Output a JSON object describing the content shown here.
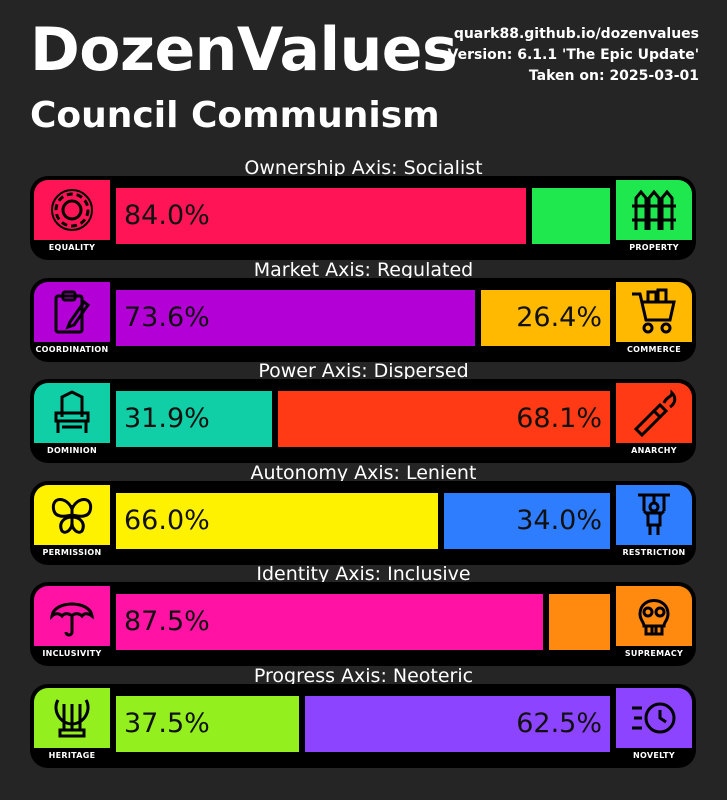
{
  "header": {
    "title": "DozenValues",
    "result": "Council Communism",
    "site": "quark88.github.io/dozenvalues",
    "version": "Version: 6.1.1 'The Epic Update'",
    "taken": "Taken on: 2025-03-01"
  },
  "axes": [
    {
      "title": "Ownership Axis: Socialist",
      "left": {
        "label": "EQUALITY",
        "icon": "gear-icon",
        "color": "#ff1556",
        "pct": 84.0,
        "text": "84.0%"
      },
      "right": {
        "label": "PROPERTY",
        "icon": "fence-icon",
        "color": "#1ee84e",
        "pct": 16.0,
        "text": ""
      }
    },
    {
      "title": "Market Axis: Regulated",
      "left": {
        "label": "COORDINATION",
        "icon": "clipboard-icon",
        "color": "#b300d6",
        "pct": 73.6,
        "text": "73.6%"
      },
      "right": {
        "label": "COMMERCE",
        "icon": "shopping-cart-icon",
        "color": "#ffb900",
        "pct": 26.4,
        "text": "26.4%"
      }
    },
    {
      "title": "Power Axis: Dispersed",
      "left": {
        "label": "DOMINION",
        "icon": "throne-icon",
        "color": "#10cfa6",
        "pct": 31.9,
        "text": "31.9%"
      },
      "right": {
        "label": "ANARCHY",
        "icon": "molotov-icon",
        "color": "#ff3a14",
        "pct": 68.1,
        "text": "68.1%"
      }
    },
    {
      "title": "Autonomy Axis: Lenient",
      "left": {
        "label": "PERMISSION",
        "icon": "butterfly-icon",
        "color": "#fff200",
        "pct": 66.0,
        "text": "66.0%"
      },
      "right": {
        "label": "RESTRICTION",
        "icon": "puppet-icon",
        "color": "#2e7dff",
        "pct": 34.0,
        "text": "34.0%"
      }
    },
    {
      "title": "Identity Axis: Inclusive",
      "left": {
        "label": "INCLUSIVITY",
        "icon": "umbrella-icon",
        "color": "#ff12a4",
        "pct": 87.5,
        "text": "87.5%"
      },
      "right": {
        "label": "SUPREMACY",
        "icon": "skull-icon",
        "color": "#ff8a0f",
        "pct": 12.5,
        "text": ""
      }
    },
    {
      "title": "Progress Axis: Neoteric",
      "left": {
        "label": "HERITAGE",
        "icon": "lyre-icon",
        "color": "#94ef1e",
        "pct": 37.5,
        "text": "37.5%"
      },
      "right": {
        "label": "NOVELTY",
        "icon": "clock-icon",
        "color": "#8c44ff",
        "pct": 62.5,
        "text": "62.5%"
      }
    }
  ]
}
